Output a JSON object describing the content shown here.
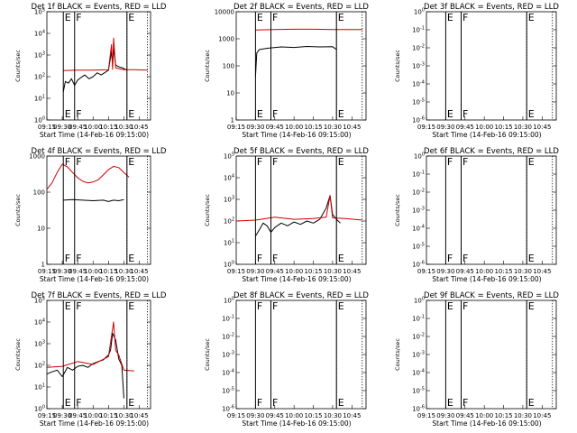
{
  "colors": {
    "events": "#000000",
    "lld": "#cc0000",
    "background": "#ffffff"
  },
  "chart_data": [
    {
      "type": "line",
      "title": "Det 1f BLACK = Events, RED = LLD",
      "xlabel": "Start Time (14-Feb-16 09:15:00)",
      "ylabel": "Counts/sec",
      "xlim": [
        "09:15",
        "10:56"
      ],
      "ylog": true,
      "ylim": [
        1,
        100000
      ],
      "xticks": [
        "09:15",
        "09:30",
        "09:45",
        "10:00",
        "10:15",
        "10:30",
        "10:45"
      ],
      "yticks": [
        "10^0",
        "10^1",
        "10^2",
        "10^3",
        "10^4",
        "10^5"
      ],
      "verticals": [
        {
          "t": "09:31",
          "label": "E"
        },
        {
          "t": "09:42",
          "label": "F"
        },
        {
          "t": "10:33",
          "label": "E"
        }
      ],
      "dotted": [
        "10:33",
        "10:53"
      ],
      "series": [
        {
          "name": "BLACK",
          "x": [
            "09:31",
            "09:33",
            "09:36",
            "09:39",
            "09:42",
            "09:45",
            "09:48",
            "09:52",
            "09:56",
            "10:00",
            "10:04",
            "10:08",
            "10:12",
            "10:15",
            "10:18",
            "10:19",
            "10:20",
            "10:22",
            "10:24",
            "10:26",
            "10:29",
            "10:33"
          ],
          "values": [
            20,
            60,
            50,
            80,
            40,
            70,
            90,
            120,
            80,
            100,
            150,
            120,
            160,
            200,
            1500,
            300,
            2000,
            350,
            300,
            280,
            250,
            200
          ]
        },
        {
          "name": "RED",
          "x": [
            "09:31",
            "09:45",
            "10:00",
            "10:15",
            "10:18",
            "10:19",
            "10:20",
            "10:22",
            "10:30",
            "10:40",
            "10:53"
          ],
          "values": [
            190,
            200,
            200,
            210,
            3000,
            220,
            6000,
            250,
            210,
            210,
            200
          ]
        }
      ]
    },
    {
      "type": "line",
      "title": "Det 2f BLACK = Events, RED = LLD",
      "xlabel": "Start Time (14-Feb-16 09:15:00)",
      "ylabel": "Counts/sec",
      "xlim": [
        "09:15",
        "10:56"
      ],
      "ylog": true,
      "ylim": [
        1,
        10000
      ],
      "xticks": [
        "09:15",
        "09:30",
        "09:45",
        "10:00",
        "10:15",
        "10:30",
        "10:45"
      ],
      "yticks": [
        "1",
        "10",
        "100",
        "1000",
        "10000"
      ],
      "verticals": [
        {
          "t": "09:30",
          "label": "E"
        },
        {
          "t": "09:42",
          "label": "F"
        },
        {
          "t": "10:33",
          "label": "E"
        }
      ],
      "dotted": [
        "10:33",
        "10:53"
      ],
      "series": [
        {
          "name": "BLACK",
          "x": [
            "09:30",
            "09:31",
            "09:33",
            "09:40",
            "09:50",
            "10:00",
            "10:10",
            "10:20",
            "10:30",
            "10:33"
          ],
          "values": [
            40,
            300,
            400,
            450,
            500,
            480,
            520,
            500,
            510,
            400
          ]
        },
        {
          "name": "RED",
          "x": [
            "09:30",
            "09:45",
            "10:00",
            "10:15",
            "10:30",
            "10:53"
          ],
          "values": [
            2100,
            2200,
            2250,
            2250,
            2200,
            2200
          ]
        }
      ]
    },
    {
      "type": "line",
      "title": "Det 3f BLACK = Events, RED = LLD",
      "xlabel": "Start Time (14-Feb-16 09:15:00)",
      "ylabel": "Counts/sec",
      "xlim": [
        "09:15",
        "10:56"
      ],
      "ylog": true,
      "ylim": [
        1e-06,
        1
      ],
      "xticks": [
        "09:15",
        "09:30",
        "09:45",
        "10:00",
        "10:15",
        "10:30",
        "10:45"
      ],
      "yticks": [
        "10^0",
        "10^-1",
        "10^-2",
        "10^-3",
        "10^-4",
        "10^-5",
        "10^-6"
      ],
      "verticals": [
        {
          "t": "09:30",
          "label": "E"
        },
        {
          "t": "09:42",
          "label": "F"
        },
        {
          "t": "10:33",
          "label": "E"
        }
      ],
      "dotted": [
        "10:33",
        "10:53"
      ],
      "series": []
    },
    {
      "type": "line",
      "title": "Det 4f BLACK = Events, RED = LLD",
      "xlabel": "Start Time (14-Feb-16 09:15:00)",
      "ylabel": "Counts/sec",
      "xlim": [
        "09:15",
        "10:56"
      ],
      "ylog": true,
      "ylim": [
        1,
        1000
      ],
      "xticks": [
        "09:15",
        "09:30",
        "09:45",
        "10:00",
        "10:15",
        "10:30",
        "10:45"
      ],
      "yticks": [
        "1",
        "10",
        "100",
        "1000"
      ],
      "verticals": [
        {
          "t": "09:31",
          "label": "F"
        },
        {
          "t": "09:42",
          "label": "F"
        },
        {
          "t": "10:33",
          "label": "E"
        }
      ],
      "dotted": [
        "10:33",
        "10:53"
      ],
      "series": [
        {
          "name": "BLACK",
          "x": [
            "09:31",
            "09:40",
            "09:50",
            "10:00",
            "10:10",
            "10:15",
            "10:20",
            "10:25",
            "10:30"
          ],
          "values": [
            60,
            62,
            60,
            58,
            60,
            55,
            60,
            58,
            62
          ]
        },
        {
          "name": "RED",
          "x": [
            "09:15",
            "09:20",
            "09:25",
            "09:30",
            "09:35",
            "09:40",
            "09:45",
            "09:50",
            "09:55",
            "10:00",
            "10:05",
            "10:10",
            "10:15",
            "10:20",
            "10:25",
            "10:30",
            "10:35"
          ],
          "values": [
            120,
            180,
            350,
            600,
            500,
            350,
            250,
            200,
            180,
            190,
            220,
            300,
            420,
            520,
            480,
            350,
            260
          ]
        }
      ]
    },
    {
      "type": "line",
      "title": "Det 5f BLACK = Events, RED = LLD",
      "xlabel": "Start Time (14-Feb-16 09:15:00)",
      "ylabel": "Counts/sec",
      "xlim": [
        "09:15",
        "10:56"
      ],
      "ylog": true,
      "ylim": [
        1,
        100000
      ],
      "xticks": [
        "09:15",
        "09:30",
        "09:45",
        "10:00",
        "10:15",
        "10:30",
        "10:45"
      ],
      "yticks": [
        "10^0",
        "10^1",
        "10^2",
        "10^3",
        "10^4",
        "10^5"
      ],
      "verticals": [
        {
          "t": "09:30",
          "label": "F"
        },
        {
          "t": "09:42",
          "label": "F"
        },
        {
          "t": "10:33",
          "label": "E"
        }
      ],
      "dotted": [
        "10:33",
        "10:53"
      ],
      "series": [
        {
          "name": "BLACK",
          "x": [
            "09:30",
            "09:33",
            "09:36",
            "09:39",
            "09:42",
            "09:45",
            "09:50",
            "09:55",
            "10:00",
            "10:05",
            "10:10",
            "10:15",
            "10:20",
            "10:25",
            "10:28",
            "10:30",
            "10:33",
            "10:36"
          ],
          "values": [
            20,
            40,
            80,
            60,
            30,
            50,
            80,
            60,
            90,
            70,
            100,
            80,
            120,
            400,
            1500,
            200,
            120,
            80
          ]
        },
        {
          "name": "RED",
          "x": [
            "09:15",
            "09:30",
            "09:45",
            "10:00",
            "10:15",
            "10:25",
            "10:28",
            "10:30",
            "10:40",
            "10:53"
          ],
          "values": [
            100,
            110,
            150,
            120,
            130,
            150,
            1500,
            140,
            130,
            110
          ]
        }
      ]
    },
    {
      "type": "line",
      "title": "Det 6f BLACK = Events, RED = LLD",
      "xlabel": "Start Time (14-Feb-16 09:15:00)",
      "ylabel": "Counts/sec",
      "xlim": [
        "09:15",
        "10:56"
      ],
      "ylog": true,
      "ylim": [
        1e-06,
        1
      ],
      "xticks": [
        "09:15",
        "09:30",
        "09:45",
        "10:00",
        "10:15",
        "10:30",
        "10:45"
      ],
      "yticks": [
        "10^0",
        "10^-1",
        "10^-2",
        "10^-3",
        "10^-4",
        "10^-5",
        "10^-6"
      ],
      "verticals": [
        {
          "t": "09:30",
          "label": "F"
        },
        {
          "t": "09:42",
          "label": "F"
        },
        {
          "t": "10:33",
          "label": "E"
        }
      ],
      "dotted": [
        "10:33",
        "10:53"
      ],
      "series": []
    },
    {
      "type": "line",
      "title": "Det 7f BLACK = Events, RED = LLD",
      "xlabel": "Start Time (14-Feb-16 09:15:00)",
      "ylabel": "Counts/sec",
      "xlim": [
        "09:15",
        "10:56"
      ],
      "ylog": true,
      "ylim": [
        1,
        100000
      ],
      "xticks": [
        "09:15",
        "09:30",
        "09:45",
        "10:00",
        "10:15",
        "10:30",
        "10:45"
      ],
      "yticks": [
        "10^0",
        "10^1",
        "10^2",
        "10^3",
        "10^4",
        "10^5"
      ],
      "verticals": [
        {
          "t": "09:31",
          "label": "E"
        },
        {
          "t": "09:42",
          "label": "F"
        },
        {
          "t": "10:33",
          "label": "E"
        }
      ],
      "dotted": [
        "10:33",
        "10:53"
      ],
      "series": [
        {
          "name": "BLACK",
          "x": [
            "09:15",
            "09:20",
            "09:25",
            "09:30",
            "09:35",
            "09:40",
            "09:45",
            "09:50",
            "09:55",
            "10:00",
            "10:05",
            "10:10",
            "10:15",
            "10:17",
            "10:19",
            "10:22",
            "10:25",
            "10:28",
            "10:30"
          ],
          "values": [
            40,
            50,
            60,
            30,
            80,
            60,
            90,
            100,
            80,
            120,
            150,
            180,
            300,
            500,
            3000,
            1500,
            200,
            100,
            3
          ]
        },
        {
          "name": "RED",
          "x": [
            "09:15",
            "09:30",
            "09:45",
            "10:00",
            "10:15",
            "10:20",
            "10:22",
            "10:25",
            "10:30",
            "10:40"
          ],
          "values": [
            80,
            90,
            150,
            110,
            250,
            10000,
            500,
            300,
            60,
            55
          ]
        }
      ]
    },
    {
      "type": "line",
      "title": "Det 8f BLACK = Events, RED = LLD",
      "xlabel": "Start Time (14-Feb-16 09:15:00)",
      "ylabel": "Counts/sec",
      "xlim": [
        "09:15",
        "10:56"
      ],
      "ylog": true,
      "ylim": [
        1e-06,
        1
      ],
      "xticks": [
        "09:15",
        "09:30",
        "09:45",
        "10:00",
        "10:15",
        "10:30",
        "10:45"
      ],
      "yticks": [
        "10^0",
        "10^-1",
        "10^-2",
        "10^-3",
        "10^-4",
        "10^-5",
        "10^-6"
      ],
      "verticals": [
        {
          "t": "09:30",
          "label": "F"
        },
        {
          "t": "09:42",
          "label": "F"
        },
        {
          "t": "10:33",
          "label": "E"
        }
      ],
      "dotted": [
        "10:33",
        "10:53"
      ],
      "series": []
    },
    {
      "type": "line",
      "title": "Det 9f BLACK = Events, RED = LLD",
      "xlabel": "Start Time (14-Feb-16 09:15:00)",
      "ylabel": "Counts/sec",
      "xlim": [
        "09:15",
        "10:56"
      ],
      "ylog": true,
      "ylim": [
        1e-06,
        1
      ],
      "xticks": [
        "09:15",
        "09:30",
        "09:45",
        "10:00",
        "10:15",
        "10:30",
        "10:45"
      ],
      "yticks": [
        "10^0",
        "10^-1",
        "10^-2",
        "10^-3",
        "10^-4",
        "10^-5",
        "10^-6"
      ],
      "verticals": [
        {
          "t": "09:30",
          "label": "E"
        },
        {
          "t": "09:42",
          "label": "F"
        },
        {
          "t": "10:33",
          "label": "E"
        }
      ],
      "dotted": [
        "10:33",
        "10:53"
      ],
      "series": []
    }
  ]
}
